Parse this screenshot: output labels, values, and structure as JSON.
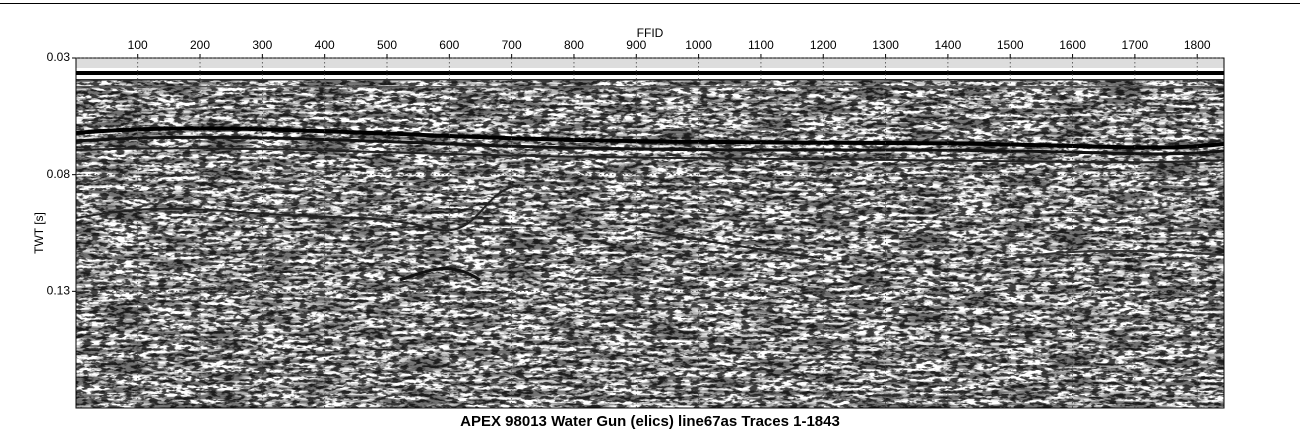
{
  "chart_data": {
    "type": "seismic",
    "title": "APEX 98013 Water Gun (elics) line67as Traces 1-1843",
    "x_label": "FFID",
    "y_label": "TWT [s]",
    "xlim": [
      1,
      1843
    ],
    "xticks": [
      100,
      200,
      300,
      400,
      500,
      600,
      700,
      800,
      900,
      1000,
      1100,
      1200,
      1300,
      1400,
      1500,
      1600,
      1700,
      1800
    ],
    "ylim": [
      0.03,
      0.18
    ],
    "yticks": [
      0.03,
      0.08,
      0.13
    ],
    "y_inverted": true,
    "grid": true
  }
}
